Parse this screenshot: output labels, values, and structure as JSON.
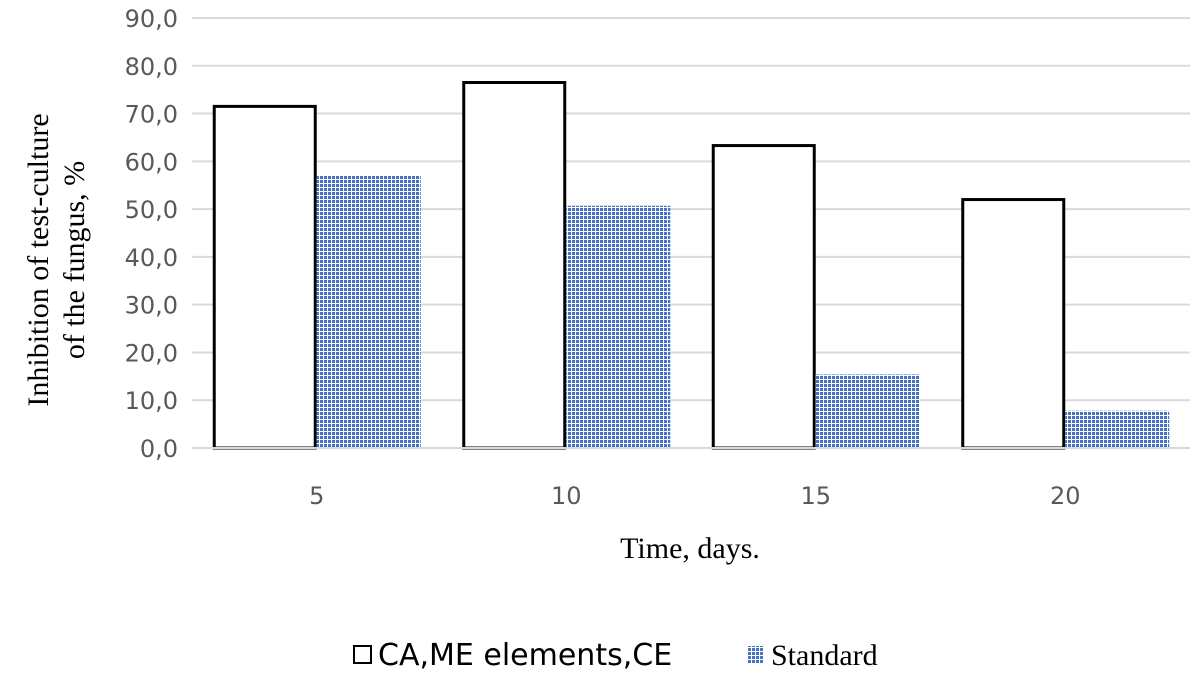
{
  "chart_data": {
    "type": "bar",
    "categories": [
      "5",
      "10",
      "15",
      "20"
    ],
    "series": [
      {
        "name": "CA,ME elements,CE",
        "values": [
          71.5,
          76.5,
          63.3,
          52.0
        ],
        "fill": "#ffffff",
        "stroke": "#000000"
      },
      {
        "name": "Standard",
        "values": [
          57.0,
          50.7,
          15.4,
          7.8
        ],
        "fill": "#4472c4",
        "pattern": "fine-grid"
      }
    ],
    "xlabel": "Time, days.",
    "ylabel_lines": [
      "Inhibition of test-culture",
      "of the fungus, %"
    ],
    "ylim": [
      0,
      90
    ],
    "yticks": [
      "0,0",
      "10,0",
      "20,0",
      "30,0",
      "40,0",
      "50,0",
      "60,0",
      "70,0",
      "80,0",
      "90,0"
    ],
    "grid": true,
    "legend_position": "bottom"
  }
}
